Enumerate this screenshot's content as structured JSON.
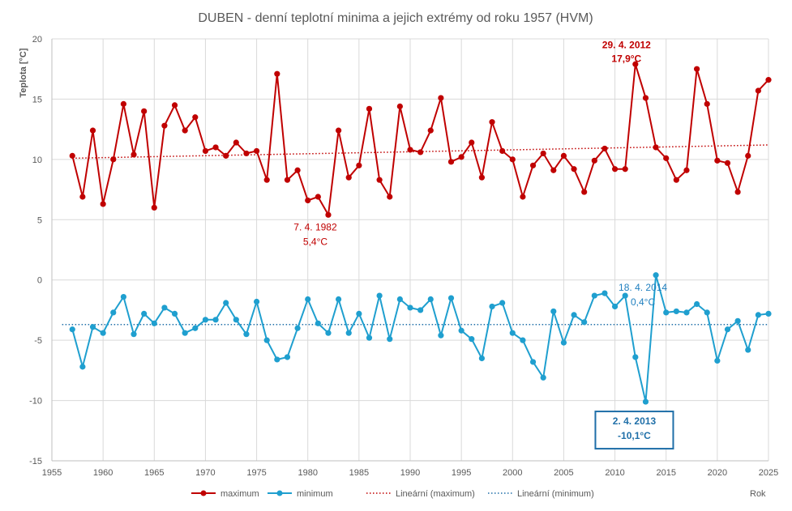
{
  "chart_data": {
    "type": "line",
    "title": "DUBEN - denní teplotní minima a jejich extrémy od roku 1957 (HVM)",
    "ylabel": "Teplota [°C]",
    "xlabel": "Rok",
    "xlim": [
      1955,
      2025
    ],
    "ylim": [
      -15,
      20
    ],
    "x_ticks": [
      1955,
      1960,
      1965,
      1970,
      1975,
      1980,
      1985,
      1990,
      1995,
      2000,
      2005,
      2010,
      2015,
      2020,
      2025
    ],
    "y_ticks": [
      -15,
      -10,
      -5,
      0,
      5,
      10,
      15,
      20
    ],
    "grid": true,
    "x": [
      1957,
      1958,
      1959,
      1960,
      1961,
      1962,
      1963,
      1964,
      1965,
      1966,
      1967,
      1968,
      1969,
      1970,
      1971,
      1972,
      1973,
      1974,
      1975,
      1976,
      1977,
      1978,
      1979,
      1980,
      1981,
      1982,
      1983,
      1984,
      1985,
      1986,
      1987,
      1988,
      1989,
      1990,
      1991,
      1992,
      1993,
      1994,
      1995,
      1996,
      1997,
      1998,
      1999,
      2000,
      2001,
      2002,
      2003,
      2004,
      2005,
      2006,
      2007,
      2008,
      2009,
      2010,
      2011,
      2012,
      2013,
      2014,
      2015,
      2016,
      2017,
      2018,
      2019,
      2020,
      2021,
      2022,
      2023,
      2024,
      2025
    ],
    "series": [
      {
        "name": "maximum",
        "color": "#c00000",
        "values": [
          10.3,
          6.9,
          12.4,
          6.3,
          10.0,
          14.6,
          10.4,
          14.0,
          6.0,
          12.8,
          14.5,
          12.4,
          13.5,
          10.7,
          11.0,
          10.3,
          11.4,
          10.5,
          10.7,
          8.3,
          17.1,
          8.3,
          9.1,
          6.6,
          6.9,
          5.4,
          12.4,
          8.5,
          9.5,
          14.2,
          8.3,
          6.9,
          14.4,
          10.8,
          10.6,
          12.4,
          15.1,
          9.8,
          10.2,
          11.4,
          8.5,
          13.1,
          10.7,
          10.0,
          6.9,
          9.5,
          10.5,
          9.1,
          10.3,
          9.2,
          7.3,
          9.9,
          10.9,
          9.2,
          9.2,
          17.9,
          15.1,
          11.0,
          10.1,
          8.3,
          9.1,
          17.5,
          14.6,
          9.9,
          9.7,
          7.3,
          10.3,
          15.7,
          16.6
        ]
      },
      {
        "name": "minimum",
        "color": "#1f9fcf",
        "values": [
          -4.1,
          -7.2,
          -3.9,
          -4.4,
          -2.7,
          -1.4,
          -4.5,
          -2.8,
          -3.6,
          -2.3,
          -2.8,
          -4.4,
          -4.0,
          -3.3,
          -3.3,
          -1.9,
          -3.3,
          -4.5,
          -1.8,
          -5.0,
          -6.6,
          -6.4,
          -4.0,
          -1.6,
          -3.6,
          -4.4,
          -1.6,
          -4.4,
          -2.8,
          -4.8,
          -1.3,
          -4.9,
          -1.6,
          -2.3,
          -2.5,
          -1.6,
          -4.6,
          -1.5,
          -4.2,
          -4.9,
          -6.5,
          -2.2,
          -1.9,
          -4.4,
          -5.0,
          -6.8,
          -8.1,
          -2.6,
          -5.2,
          -2.9,
          -3.5,
          -1.3,
          -1.1,
          -2.2,
          -1.3,
          -6.4,
          -10.1,
          0.4,
          -2.7,
          -2.6,
          -2.7,
          -2.0,
          -2.7,
          -6.7,
          -4.1,
          -3.4,
          -5.8,
          -2.9,
          -2.8
        ]
      },
      {
        "name": "Lineární (maximum)",
        "color": "#c00000",
        "style": "dotted",
        "x": [
          1957,
          2025
        ],
        "values": [
          10.1,
          11.2
        ]
      },
      {
        "name": "Lineární (minimum)",
        "color": "#1f6fa8",
        "style": "dotted",
        "x": [
          1956,
          2025
        ],
        "values": [
          -3.7,
          -3.7
        ]
      }
    ],
    "annotations": [
      {
        "line1": "29. 4. 2012",
        "line2": "17,9°C",
        "x": 2012,
        "y": 17.9,
        "color": "#c00000",
        "bold": true,
        "boxed": false
      },
      {
        "line1": "7. 4. 1982",
        "line2": "5,4°C",
        "x": 1982,
        "y": 5.4,
        "color": "#c00000",
        "bold": false,
        "boxed": false
      },
      {
        "line1": "18. 4. 2014",
        "line2": "0,4°C",
        "x": 2014,
        "y": 0.4,
        "color": "#1f7fbf",
        "bold": false,
        "boxed": false
      },
      {
        "line1": "2. 4. 2013",
        "line2": "-10,1°C",
        "x": 2013,
        "y": -10.1,
        "color": "#1f6fa8",
        "bold": true,
        "boxed": true
      }
    ],
    "legend_position": "bottom",
    "legend": [
      "maximum",
      "minimum",
      "Lineární (maximum)",
      "Lineární (minimum)"
    ]
  }
}
